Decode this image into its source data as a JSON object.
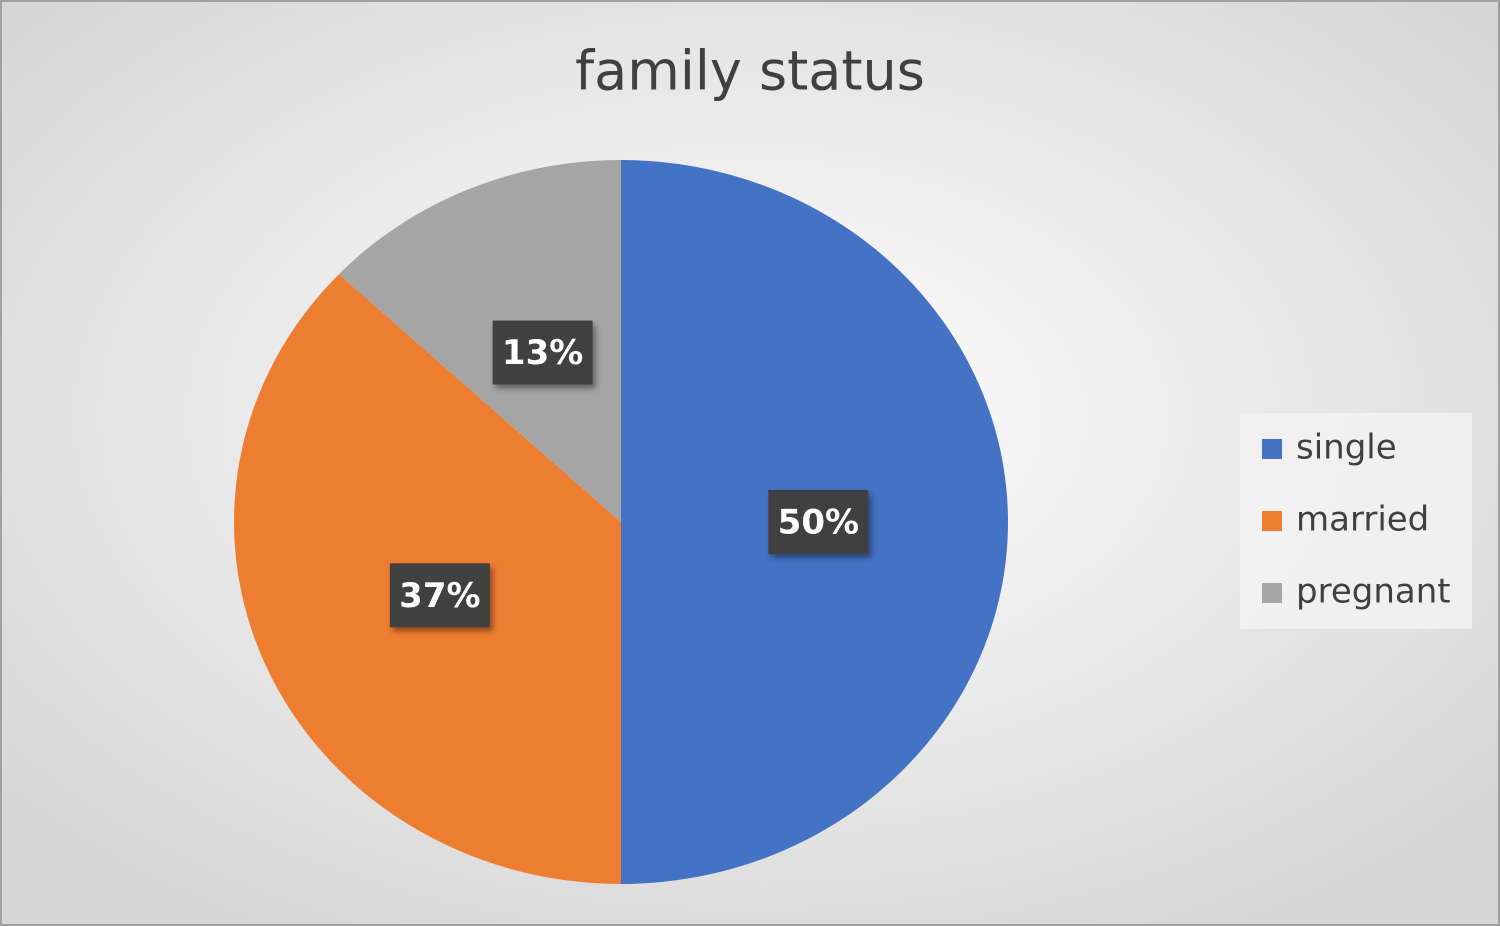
{
  "chart_data": {
    "type": "pie",
    "title": "family status",
    "categories": [
      "single",
      "married",
      "pregnant"
    ],
    "values": [
      50,
      37,
      13
    ],
    "value_labels": [
      "50%",
      "37%",
      "13%"
    ],
    "colors": [
      "#4472c4",
      "#ed7d31",
      "#a5a5a5"
    ],
    "legend": "right"
  }
}
